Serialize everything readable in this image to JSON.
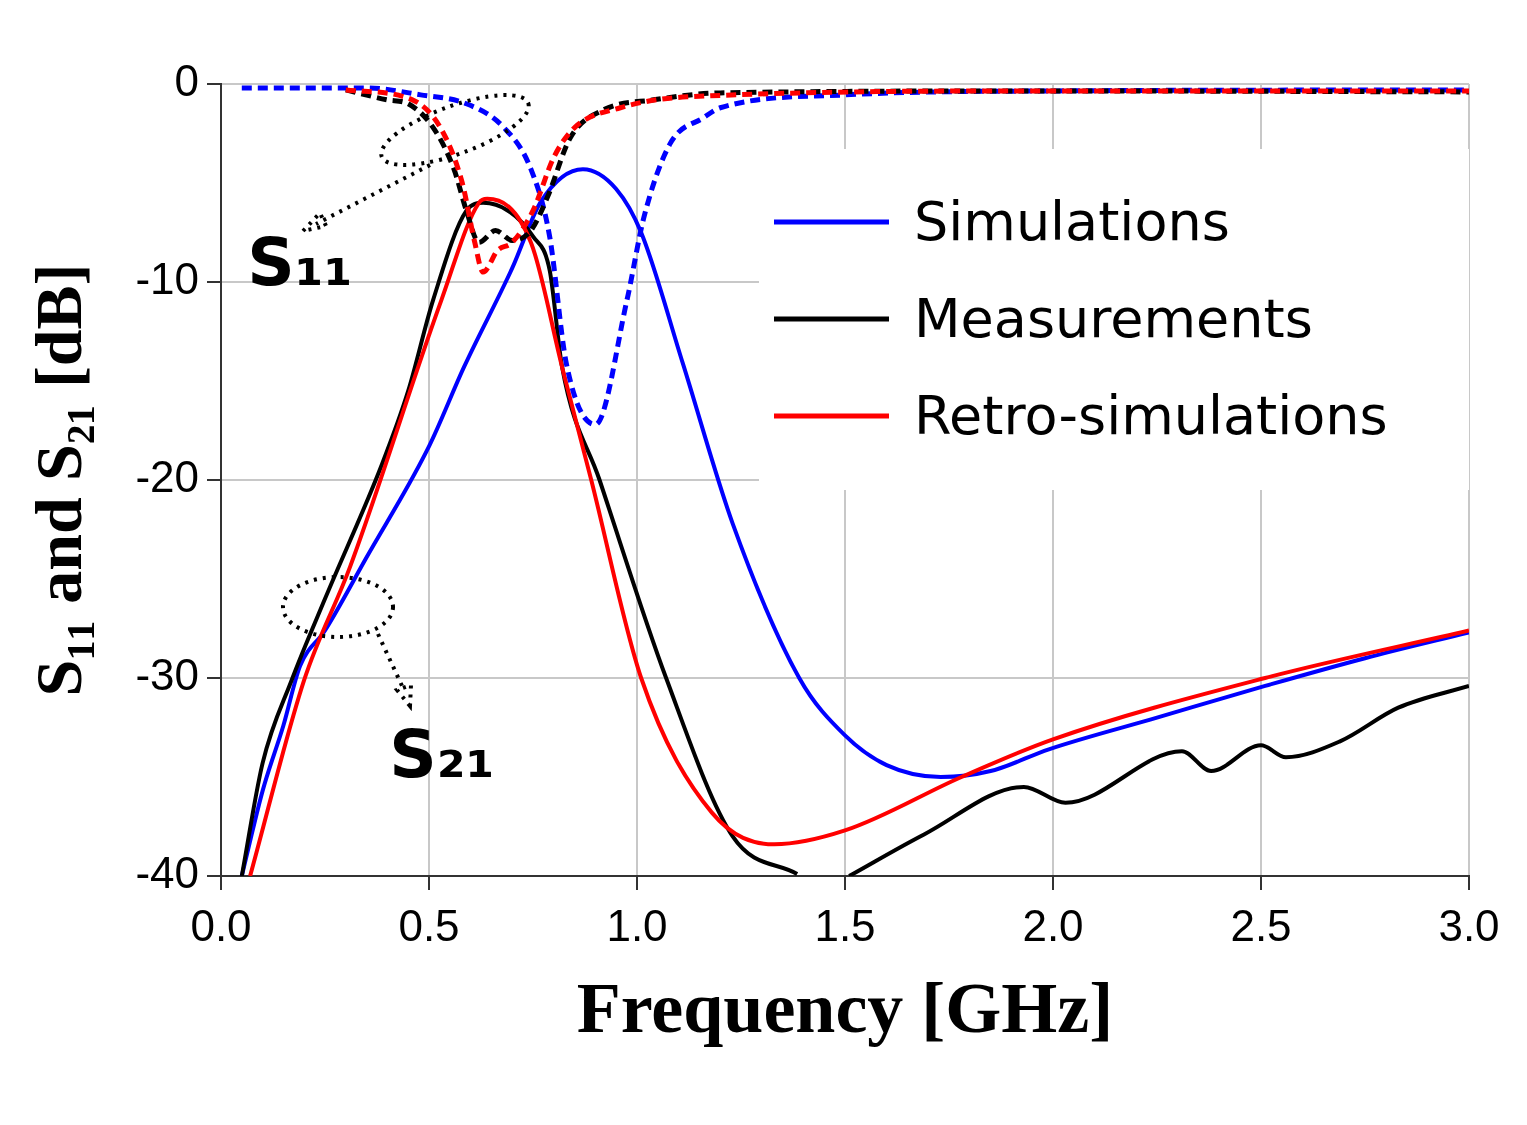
{
  "chart_data": {
    "type": "line",
    "xlabel": "Frequency [GHz]",
    "ylabel": "S₁₁ and S₂₁ [dB]",
    "xlim": [
      0,
      3
    ],
    "ylim": [
      -40,
      0
    ],
    "xticks": [
      {
        "value": 0,
        "label": "0.0"
      },
      0.5,
      {
        "value": 1,
        "label": "1.0"
      },
      1.5,
      {
        "value": 2,
        "label": "2.0"
      },
      2.5,
      {
        "value": 3,
        "label": "3.0"
      }
    ],
    "yticks": [
      0,
      -10,
      -20,
      -30,
      -40
    ],
    "grid": true,
    "legend": "top right",
    "marker": "none",
    "annotations": [
      "S₁₁",
      "S₂₁"
    ],
    "series": [
      {
        "name": "Simulations",
        "color": "#0000ff",
        "line_style": "solid",
        "x": [
          0.05,
          0.1,
          0.15,
          0.19,
          0.25,
          0.35,
          0.5,
          0.584,
          0.7,
          0.77,
          0.87,
          0.95,
          1.01,
          1.11,
          1.23,
          1.39,
          1.5,
          1.6,
          1.73,
          1.85,
          1.99,
          2.25,
          2.51,
          2.75,
          3.0
        ],
        "values": [
          -40,
          -35.7,
          -32.4,
          -29.4,
          -27.6,
          -23.9,
          -18.3,
          -14.3,
          -9.3,
          -5.9,
          -4.3,
          -5.3,
          -7.5,
          -14.1,
          -22.2,
          -30.0,
          -32.9,
          -34.4,
          -35.0,
          -34.7,
          -33.6,
          -32.0,
          -30.4,
          -29.0,
          -27.7
        ]
      },
      {
        "name": "Measurements",
        "color": "#000000",
        "line_style": "solid",
        "x": [
          0.05,
          0.1,
          0.17,
          0.25,
          0.387,
          0.45,
          0.51,
          0.59,
          0.63,
          0.69,
          0.75,
          0.79,
          0.82,
          0.91,
          1.07,
          1.23,
          1.385,
          1.45,
          1.51,
          1.69,
          1.93,
          2.03,
          2.31,
          2.38,
          2.5,
          2.56,
          2.69,
          2.83,
          3.0
        ],
        "values": [
          -40,
          -34.3,
          -30.1,
          -26.0,
          -19.2,
          -15.5,
          -10.9,
          -6.4,
          -6.0,
          -6.4,
          -7.7,
          -9.4,
          -14.3,
          -20.0,
          -30.0,
          -38.0,
          -39.9,
          null,
          -40,
          -37.9,
          -35.5,
          -36.3,
          -33.7,
          -34.7,
          -33.4,
          -34.0,
          -33.2,
          -31.5,
          -30.4
        ]
      },
      {
        "name": "Retro-simulations",
        "color": "#ff0000",
        "line_style": "solid",
        "x": [
          0.07,
          0.2,
          0.31,
          0.53,
          0.62,
          0.64,
          0.745,
          0.82,
          0.89,
          1.01,
          1.18,
          1.33,
          1.5,
          1.78,
          2.0,
          2.51,
          3.0
        ],
        "values": [
          -40,
          -30.1,
          -24.4,
          -10.9,
          -6.0,
          -5.8,
          -8.0,
          -14.3,
          -20.0,
          -30.0,
          -36.8,
          -38.4,
          -37.7,
          -35.0,
          -33.1,
          -30.0,
          -27.6
        ]
      },
      {
        "color": "#0000ff",
        "line_style": "dashed",
        "x": [
          0.05,
          0.35,
          0.48,
          0.59,
          0.68,
          0.745,
          0.79,
          0.83,
          0.9,
          0.976,
          1.017,
          1.08,
          1.16,
          1.2,
          1.5,
          2.0,
          3.0
        ],
        "values": [
          -0.2,
          -0.2,
          -0.55,
          -1.0,
          -2.2,
          -4.3,
          -7.7,
          -14.1,
          -17.2,
          -10.9,
          -6.7,
          -3.0,
          -1.7,
          -1.2,
          -0.55,
          -0.35,
          -0.3
        ]
      },
      {
        "color": "#000000",
        "line_style": "dashed",
        "x": [
          0.3,
          0.4,
          0.45,
          0.51,
          0.56,
          0.59,
          0.62,
          0.66,
          0.7,
          0.745,
          0.785,
          0.84,
          0.92,
          1.04,
          1.2,
          2.0,
          3.0
        ],
        "values": [
          -0.3,
          -0.8,
          -1.0,
          -2.2,
          -4.3,
          -6.4,
          -8.0,
          -7.4,
          -7.9,
          -7.4,
          -5.7,
          -2.7,
          -1.3,
          -0.8,
          -0.45,
          -0.35,
          -0.4
        ]
      },
      {
        "color": "#ff0000",
        "line_style": "dashed",
        "x": [
          0.3,
          0.46,
          0.53,
          0.58,
          0.61,
          0.63,
          0.665,
          0.7,
          0.75,
          0.8,
          0.85,
          0.96,
          1.12,
          2.0,
          3.0
        ],
        "values": [
          -0.3,
          -0.8,
          -2.3,
          -5.0,
          -8.0,
          -9.5,
          -8.4,
          -8.0,
          -6.4,
          -3.7,
          -2.2,
          -1.2,
          -0.65,
          -0.35,
          -0.35
        ]
      }
    ]
  }
}
